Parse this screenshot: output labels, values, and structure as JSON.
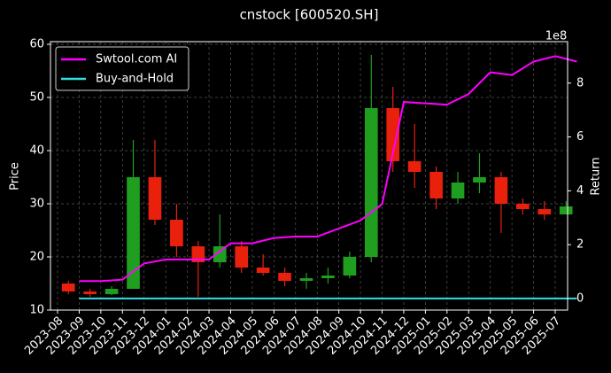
{
  "chart_data": {
    "type": "candlestick",
    "title": "cnstock [600520.SH]",
    "y_label": "Price",
    "y2_label": "Return",
    "y2_offset_label": "1e8",
    "categories": [
      "2023-08",
      "2023-09",
      "2023-10",
      "2023-11",
      "2023-12",
      "2024-01",
      "2024-02",
      "2024-03",
      "2024-04",
      "2024-05",
      "2024-06",
      "2024-07",
      "2024-08",
      "2024-09",
      "2024-10",
      "2024-11",
      "2024-12",
      "2025-01",
      "2025-02",
      "2025-03",
      "2025-04",
      "2025-05",
      "2025-06",
      "2025-07"
    ],
    "open": [
      15,
      13.5,
      13,
      14,
      35,
      27,
      22,
      19,
      22,
      18,
      17,
      15.5,
      16,
      16.5,
      20,
      48,
      38,
      36,
      31,
      34,
      35,
      30,
      29,
      28
    ],
    "high": [
      15.5,
      14,
      14.5,
      42,
      42,
      30,
      23,
      28,
      23,
      20.5,
      18,
      17,
      18,
      21,
      58,
      52,
      45,
      37,
      36,
      39.5,
      36,
      31,
      30.5,
      30.5
    ],
    "low": [
      13,
      12.5,
      12.8,
      14,
      26,
      20,
      12.5,
      18,
      17,
      16.5,
      14.5,
      14,
      15,
      16,
      19,
      36,
      33,
      29,
      30,
      32,
      24.5,
      28,
      27,
      28
    ],
    "close": [
      13.5,
      13,
      14,
      35,
      27,
      22,
      19,
      22,
      18,
      17,
      15.5,
      16,
      16.5,
      20,
      48,
      38,
      36,
      31,
      34,
      35,
      30,
      29,
      28,
      29.5
    ],
    "up_color": "#1f9e1f",
    "down_color": "#e8200c",
    "series": [
      {
        "name": "Swtool.com AI",
        "color": "#ff00ff",
        "axis": "y2",
        "values": [
          0.65,
          0.65,
          0.7,
          1.3,
          1.45,
          1.45,
          1.45,
          2.05,
          2.05,
          2.25,
          2.3,
          2.3,
          2.6,
          2.9,
          3.5,
          7.3,
          7.25,
          7.2,
          7.6,
          8.4,
          8.3,
          8.8,
          9.0,
          8.8
        ]
      },
      {
        "name": "Buy-and-Hold",
        "color": "#33e0e0",
        "axis": "y2",
        "values": [
          0,
          0,
          0,
          0,
          0,
          0,
          0,
          0,
          0,
          0,
          0,
          0,
          0,
          0,
          0,
          0,
          0,
          0,
          0,
          0,
          0,
          0,
          0,
          0
        ]
      }
    ],
    "ylim": [
      10,
      60.5
    ],
    "yticks": [
      10,
      20,
      30,
      40,
      50,
      60
    ],
    "y2lim": [
      -0.43,
      9.54
    ],
    "y2ticks": [
      0,
      2,
      4,
      6,
      8
    ],
    "grid": true,
    "legend": "upper left"
  }
}
